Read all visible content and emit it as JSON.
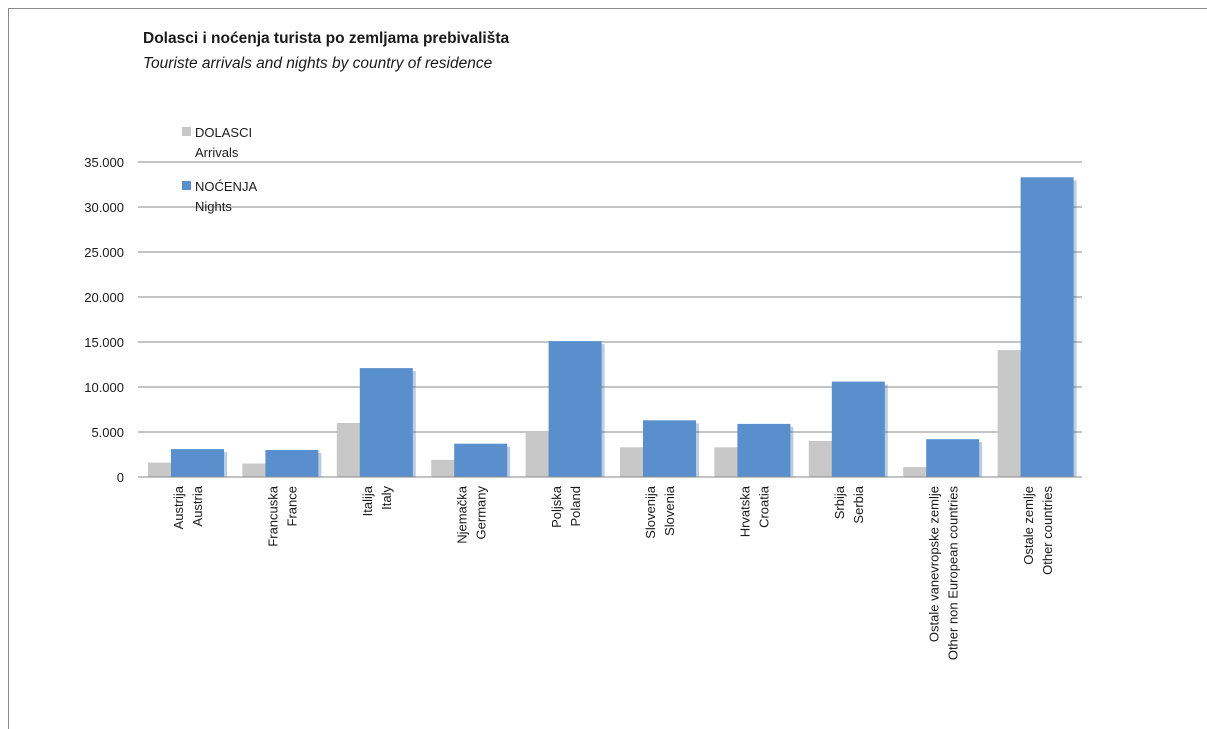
{
  "chart_data": {
    "type": "bar",
    "title": "Dolasci i noćenja turista po zemljama prebivališta",
    "subtitle": "Touriste arrivals and nights by country of residence",
    "xlabel": "",
    "ylabel": "",
    "ylim": [
      0,
      35000
    ],
    "y_ticks": [
      "0",
      "5.000",
      "10.000",
      "15.000",
      "20.000",
      "25.000",
      "30.000",
      "35.000"
    ],
    "grid": true,
    "legend_position": "top-left",
    "categories": [
      [
        "Austrija",
        "Austria"
      ],
      [
        "Francuska",
        "France"
      ],
      [
        "Italija",
        "Italy"
      ],
      [
        "Njemačka",
        "Germany"
      ],
      [
        "Poljska",
        "Poland"
      ],
      [
        "Slovenija",
        "Slovenia"
      ],
      [
        "Hrvatska",
        "Croatia"
      ],
      [
        "Srbija",
        "Serbia"
      ],
      [
        "Ostale vanevropske zemlje",
        "Other  non European countries"
      ],
      [
        "Ostale zemlje",
        "Other countries"
      ]
    ],
    "series": [
      {
        "name": "DOLASCI",
        "name_en": "Arrivals",
        "color": "#c8c8c8",
        "values": [
          1600,
          1500,
          6000,
          1900,
          5000,
          3300,
          3300,
          4000,
          1100,
          14100
        ]
      },
      {
        "name": "NOĆENJA",
        "name_en": "Nights",
        "color": "#5a8fcd",
        "values": [
          3100,
          3000,
          12100,
          3700,
          15100,
          6300,
          5900,
          10600,
          4200,
          33300
        ]
      }
    ]
  }
}
